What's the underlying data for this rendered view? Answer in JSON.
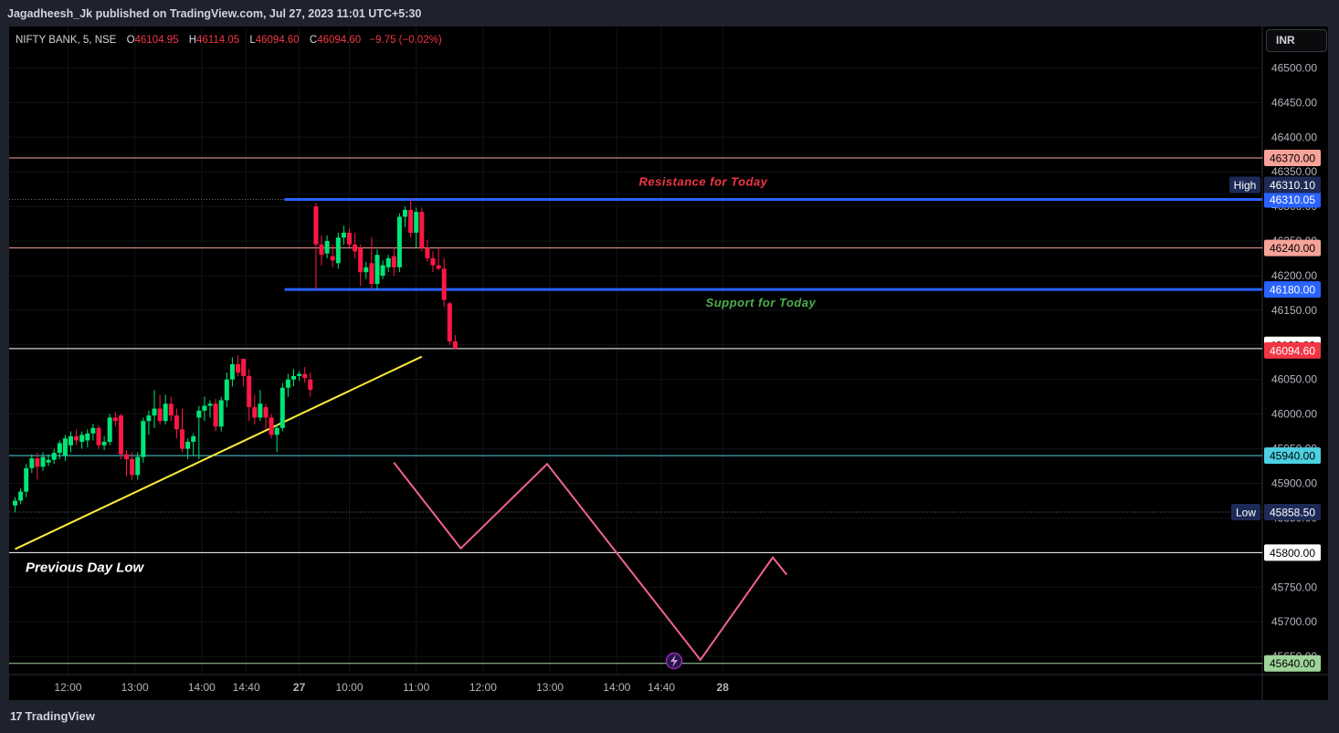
{
  "header": {
    "published_by": "Jagadheesh_Jk published on TradingView.com, Jul 27, 2023 11:01 UTC+5:30"
  },
  "legend": {
    "symbol": "NIFTY BANK, 5, NSE",
    "open_label": "O",
    "open": "46104.95",
    "high_label": "H",
    "high": "46114.05",
    "low_label": "L",
    "low": "46094.60",
    "close_label": "C",
    "close": "46094.60",
    "change": "−9.75 (−0.02%)"
  },
  "currency": "INR",
  "footer": {
    "brand": "TradingView",
    "logo_glyph": "17"
  },
  "colors": {
    "background": "#000000",
    "chrome": "#1e222d",
    "up_candle": "#00e676",
    "down_candle": "#ff1744",
    "resistance_support": "#2962ff",
    "trendline": "#ffeb3b",
    "projection": "#f06292",
    "salmon_level": "#f7a399",
    "teal_level": "#4dd0e1",
    "white_level": "#ffffff",
    "green_level": "#9fd49b"
  },
  "chart_data": {
    "type": "candlestick",
    "symbol": "NIFTY BANK",
    "interval": "5",
    "exchange": "NSE",
    "currency": "INR",
    "ylim": [
      45610,
      46560
    ],
    "y_ticks": [
      "46500.00",
      "46450.00",
      "46400.00",
      "46350.00",
      "46300.00",
      "46250.00",
      "46200.00",
      "46150.00",
      "46100.00",
      "46050.00",
      "46000.00",
      "45950.00",
      "45900.00",
      "45850.00",
      "45800.00",
      "45750.00",
      "45700.00",
      "45650.00"
    ],
    "x_ticks": [
      {
        "label": "12:00",
        "bar": 9.5
      },
      {
        "label": "13:00",
        "bar": 21.5
      },
      {
        "label": "14:00",
        "bar": 33.5
      },
      {
        "label": "14:40",
        "bar": 41.5
      },
      {
        "label": "27",
        "bar": 51
      },
      {
        "label": "10:00",
        "bar": 60
      },
      {
        "label": "11:00",
        "bar": 72
      },
      {
        "label": "12:00",
        "bar": 84
      },
      {
        "label": "13:00",
        "bar": 96
      },
      {
        "label": "14:00",
        "bar": 108
      },
      {
        "label": "14:40",
        "bar": 116
      },
      {
        "label": "28",
        "bar": 127
      }
    ],
    "candles": [
      {
        "o": 45868,
        "h": 45880,
        "l": 45858,
        "c": 45875
      },
      {
        "o": 45875,
        "h": 45893,
        "l": 45870,
        "c": 45888
      },
      {
        "o": 45888,
        "h": 45928,
        "l": 45880,
        "c": 45922
      },
      {
        "o": 45922,
        "h": 45942,
        "l": 45915,
        "c": 45936
      },
      {
        "o": 45936,
        "h": 45944,
        "l": 45905,
        "c": 45924
      },
      {
        "o": 45924,
        "h": 45945,
        "l": 45918,
        "c": 45938
      },
      {
        "o": 45930,
        "h": 45942,
        "l": 45925,
        "c": 45934
      },
      {
        "o": 45934,
        "h": 45950,
        "l": 45928,
        "c": 45944
      },
      {
        "o": 45944,
        "h": 45962,
        "l": 45935,
        "c": 45958
      },
      {
        "o": 45940,
        "h": 45970,
        "l": 45932,
        "c": 45965
      },
      {
        "o": 45955,
        "h": 45975,
        "l": 45945,
        "c": 45968
      },
      {
        "o": 45968,
        "h": 45978,
        "l": 45955,
        "c": 45962
      },
      {
        "o": 45960,
        "h": 45975,
        "l": 45950,
        "c": 45970
      },
      {
        "o": 45962,
        "h": 45978,
        "l": 45952,
        "c": 45972
      },
      {
        "o": 45972,
        "h": 45986,
        "l": 45962,
        "c": 45980
      },
      {
        "o": 45980,
        "h": 45984,
        "l": 45950,
        "c": 45955
      },
      {
        "o": 45955,
        "h": 45968,
        "l": 45948,
        "c": 45960
      },
      {
        "o": 45960,
        "h": 46000,
        "l": 45955,
        "c": 45995
      },
      {
        "o": 45995,
        "h": 46003,
        "l": 45982,
        "c": 45990
      },
      {
        "o": 45998,
        "h": 46000,
        "l": 45935,
        "c": 45942
      },
      {
        "o": 45942,
        "h": 45948,
        "l": 45910,
        "c": 45935
      },
      {
        "o": 45935,
        "h": 45945,
        "l": 45905,
        "c": 45912
      },
      {
        "o": 45912,
        "h": 45945,
        "l": 45905,
        "c": 45938
      },
      {
        "o": 45938,
        "h": 45995,
        "l": 45930,
        "c": 45990
      },
      {
        "o": 45990,
        "h": 46005,
        "l": 45970,
        "c": 45998
      },
      {
        "o": 45998,
        "h": 46035,
        "l": 45980,
        "c": 46008
      },
      {
        "o": 46008,
        "h": 46028,
        "l": 45985,
        "c": 45990
      },
      {
        "o": 45990,
        "h": 46028,
        "l": 45985,
        "c": 46015
      },
      {
        "o": 46015,
        "h": 46025,
        "l": 45990,
        "c": 45998
      },
      {
        "o": 45998,
        "h": 46008,
        "l": 45965,
        "c": 45978
      },
      {
        "o": 45978,
        "h": 46008,
        "l": 45945,
        "c": 45950
      },
      {
        "o": 45950,
        "h": 45965,
        "l": 45935,
        "c": 45960
      },
      {
        "o": 45960,
        "h": 45972,
        "l": 45940,
        "c": 45968
      },
      {
        "o": 45995,
        "h": 46012,
        "l": 45935,
        "c": 46005
      },
      {
        "o": 46005,
        "h": 46025,
        "l": 45990,
        "c": 46012
      },
      {
        "o": 46012,
        "h": 46020,
        "l": 45995,
        "c": 46015
      },
      {
        "o": 46015,
        "h": 46022,
        "l": 45975,
        "c": 45982
      },
      {
        "o": 45982,
        "h": 46025,
        "l": 45975,
        "c": 46020
      },
      {
        "o": 46020,
        "h": 46060,
        "l": 46010,
        "c": 46050
      },
      {
        "o": 46050,
        "h": 46082,
        "l": 46040,
        "c": 46072
      },
      {
        "o": 46072,
        "h": 46085,
        "l": 46055,
        "c": 46060
      },
      {
        "o": 46080,
        "h": 46080,
        "l": 46040,
        "c": 46055
      },
      {
        "o": 46055,
        "h": 46065,
        "l": 45990,
        "c": 46010
      },
      {
        "o": 46010,
        "h": 46028,
        "l": 45985,
        "c": 45995
      },
      {
        "o": 45995,
        "h": 46035,
        "l": 45990,
        "c": 46015
      },
      {
        "o": 46010,
        "h": 46015,
        "l": 45978,
        "c": 45995
      },
      {
        "o": 45995,
        "h": 46000,
        "l": 45965,
        "c": 45970
      },
      {
        "o": 45970,
        "h": 45985,
        "l": 45945,
        "c": 45980
      },
      {
        "o": 45980,
        "h": 46045,
        "l": 45975,
        "c": 46038
      },
      {
        "o": 46038,
        "h": 46058,
        "l": 46025,
        "c": 46050
      },
      {
        "o": 46050,
        "h": 46065,
        "l": 46040,
        "c": 46055
      },
      {
        "o": 46055,
        "h": 46062,
        "l": 46048,
        "c": 46058
      },
      {
        "o": 46058,
        "h": 46068,
        "l": 46045,
        "c": 46052
      },
      {
        "o": 46050,
        "h": 46060,
        "l": 46025,
        "c": 46035
      },
      {
        "o": 46300,
        "h": 46305,
        "l": 46180,
        "c": 46245
      },
      {
        "o": 46245,
        "h": 46258,
        "l": 46215,
        "c": 46230
      },
      {
        "o": 46232,
        "h": 46258,
        "l": 46225,
        "c": 46250
      },
      {
        "o": 46228,
        "h": 46245,
        "l": 46212,
        "c": 46222
      },
      {
        "o": 46218,
        "h": 46262,
        "l": 46210,
        "c": 46255
      },
      {
        "o": 46255,
        "h": 46272,
        "l": 46245,
        "c": 46262
      },
      {
        "o": 46262,
        "h": 46268,
        "l": 46240,
        "c": 46245
      },
      {
        "o": 46245,
        "h": 46262,
        "l": 46225,
        "c": 46235
      },
      {
        "o": 46240,
        "h": 46245,
        "l": 46185,
        "c": 46205
      },
      {
        "o": 46205,
        "h": 46220,
        "l": 46195,
        "c": 46212
      },
      {
        "o": 46218,
        "h": 46255,
        "l": 46180,
        "c": 46188
      },
      {
        "o": 46188,
        "h": 46238,
        "l": 46180,
        "c": 46230
      },
      {
        "o": 46200,
        "h": 46222,
        "l": 46195,
        "c": 46215
      },
      {
        "o": 46212,
        "h": 46230,
        "l": 46205,
        "c": 46225
      },
      {
        "o": 46228,
        "h": 46240,
        "l": 46200,
        "c": 46212
      },
      {
        "o": 46212,
        "h": 46290,
        "l": 46205,
        "c": 46285
      },
      {
        "o": 46285,
        "h": 46300,
        "l": 46270,
        "c": 46295
      },
      {
        "o": 46295,
        "h": 46312,
        "l": 46255,
        "c": 46262
      },
      {
        "o": 46262,
        "h": 46298,
        "l": 46240,
        "c": 46292
      },
      {
        "o": 46292,
        "h": 46298,
        "l": 46235,
        "c": 46240
      },
      {
        "o": 46240,
        "h": 46252,
        "l": 46220,
        "c": 46225
      },
      {
        "o": 46225,
        "h": 46235,
        "l": 46205,
        "c": 46215
      },
      {
        "o": 46215,
        "h": 46240,
        "l": 46208,
        "c": 46210
      },
      {
        "o": 46210,
        "h": 46225,
        "l": 46155,
        "c": 46165
      },
      {
        "o": 46160,
        "h": 46162,
        "l": 46100,
        "c": 46105
      },
      {
        "o": 46104.95,
        "h": 46114.05,
        "l": 46094.6,
        "c": 46094.6
      }
    ],
    "horizontal_levels": [
      {
        "price": 46370,
        "label": "46370.00",
        "color": "#f7a399",
        "style": "solid",
        "from_bar": 0
      },
      {
        "price": 46310.05,
        "label": "46310.05",
        "color": "#2962ff",
        "style": "thick",
        "from_bar": 50,
        "text": "Resistance for Today",
        "text_color": "#f23645"
      },
      {
        "price": 46240,
        "label": "46240.00",
        "color": "#f7a399",
        "style": "solid",
        "from_bar": 0
      },
      {
        "price": 46180,
        "label": "46180.00",
        "color": "#2962ff",
        "style": "thick",
        "from_bar": 50,
        "text": "Support for Today",
        "text_color": "#4caf50"
      },
      {
        "price": 46094.6,
        "label": "46094.60",
        "color": "#ffffff",
        "style": "solid",
        "from_bar": 0
      },
      {
        "price": 45940,
        "label": "45940.00",
        "color": "#4dd0e1",
        "style": "solid",
        "from_bar": 0
      },
      {
        "price": 45800,
        "label": "45800.00",
        "color": "#ffffff",
        "style": "solid",
        "from_bar": 0,
        "text": "Previous Day Low",
        "text_color": "#ffffff"
      },
      {
        "price": 45640,
        "label": "45640.00",
        "color": "#9fd49b",
        "style": "solid",
        "from_bar": 0
      }
    ],
    "high_marker": {
      "label": "High",
      "value": "46310.10",
      "price": 46310.1
    },
    "low_marker": {
      "label": "Low",
      "value": "45858.50",
      "price": 45858.5
    },
    "current_price": {
      "value": "46094.60",
      "price": 46094.6
    },
    "trendline": {
      "points": [
        {
          "bar": 0,
          "price": 45805
        },
        {
          "bar": 73,
          "price": 46083
        }
      ],
      "color": "#ffeb3b"
    },
    "projection_path": {
      "points": [
        {
          "bar": 68,
          "price": 45930
        },
        {
          "bar": 80,
          "price": 45806
        },
        {
          "bar": 95.5,
          "price": 45928
        },
        {
          "bar": 123,
          "price": 45645
        },
        {
          "bar": 136,
          "price": 45793
        },
        {
          "bar": 138.5,
          "price": 45768
        }
      ],
      "color": "#f06292"
    }
  }
}
